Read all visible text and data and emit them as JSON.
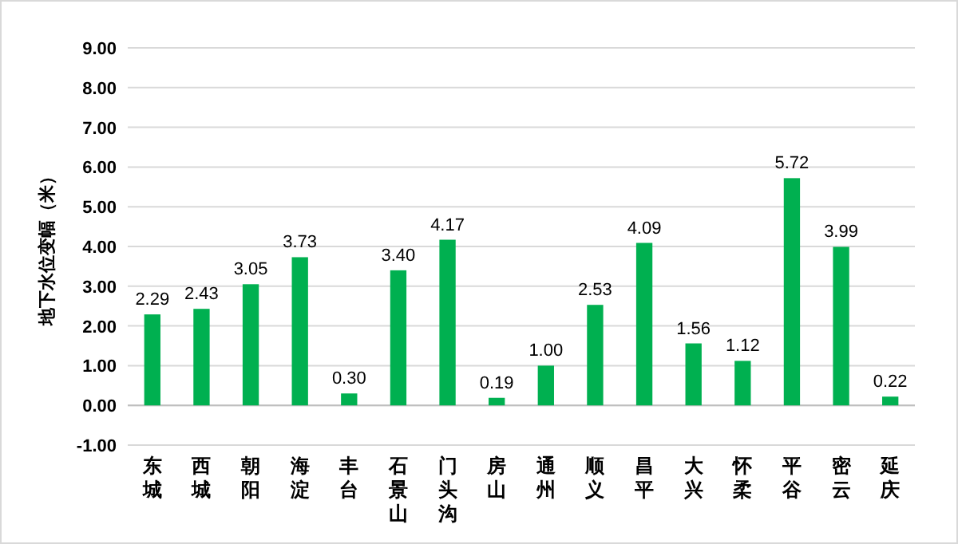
{
  "chart_data": {
    "type": "bar",
    "ylabel": "地下水位变幅（米）",
    "categories": [
      "东城",
      "西城",
      "朝阳",
      "海淀",
      "丰台",
      "石景山",
      "门头沟",
      "房山",
      "通州",
      "顺义",
      "昌平",
      "大兴",
      "怀柔",
      "平谷",
      "密云",
      "延庆"
    ],
    "values": [
      2.29,
      2.43,
      3.05,
      3.73,
      0.3,
      3.4,
      4.17,
      0.19,
      1.0,
      2.53,
      4.09,
      1.56,
      1.12,
      5.72,
      3.99,
      0.22
    ],
    "color": "#00b050",
    "ylim": [
      -1,
      9
    ],
    "yticks": [
      {
        "value": -1,
        "label": "-1.00"
      },
      {
        "value": 0,
        "label": "0.00"
      },
      {
        "value": 1,
        "label": "1.00"
      },
      {
        "value": 2,
        "label": "2.00"
      },
      {
        "value": 3,
        "label": "3.00"
      },
      {
        "value": 4,
        "label": "4.00"
      },
      {
        "value": 5,
        "label": "5.00"
      },
      {
        "value": 6,
        "label": "6.00"
      },
      {
        "value": 7,
        "label": "7.00"
      },
      {
        "value": 8,
        "label": "8.00"
      },
      {
        "value": 9,
        "label": "9.00"
      }
    ],
    "grid": "y",
    "value_labels": [
      "2.29",
      "2.43",
      "3.05",
      "3.73",
      "0.30",
      "3.40",
      "4.17",
      "0.19",
      "1.00",
      "2.53",
      "4.09",
      "1.56",
      "1.12",
      "5.72",
      "3.99",
      "0.22"
    ]
  }
}
